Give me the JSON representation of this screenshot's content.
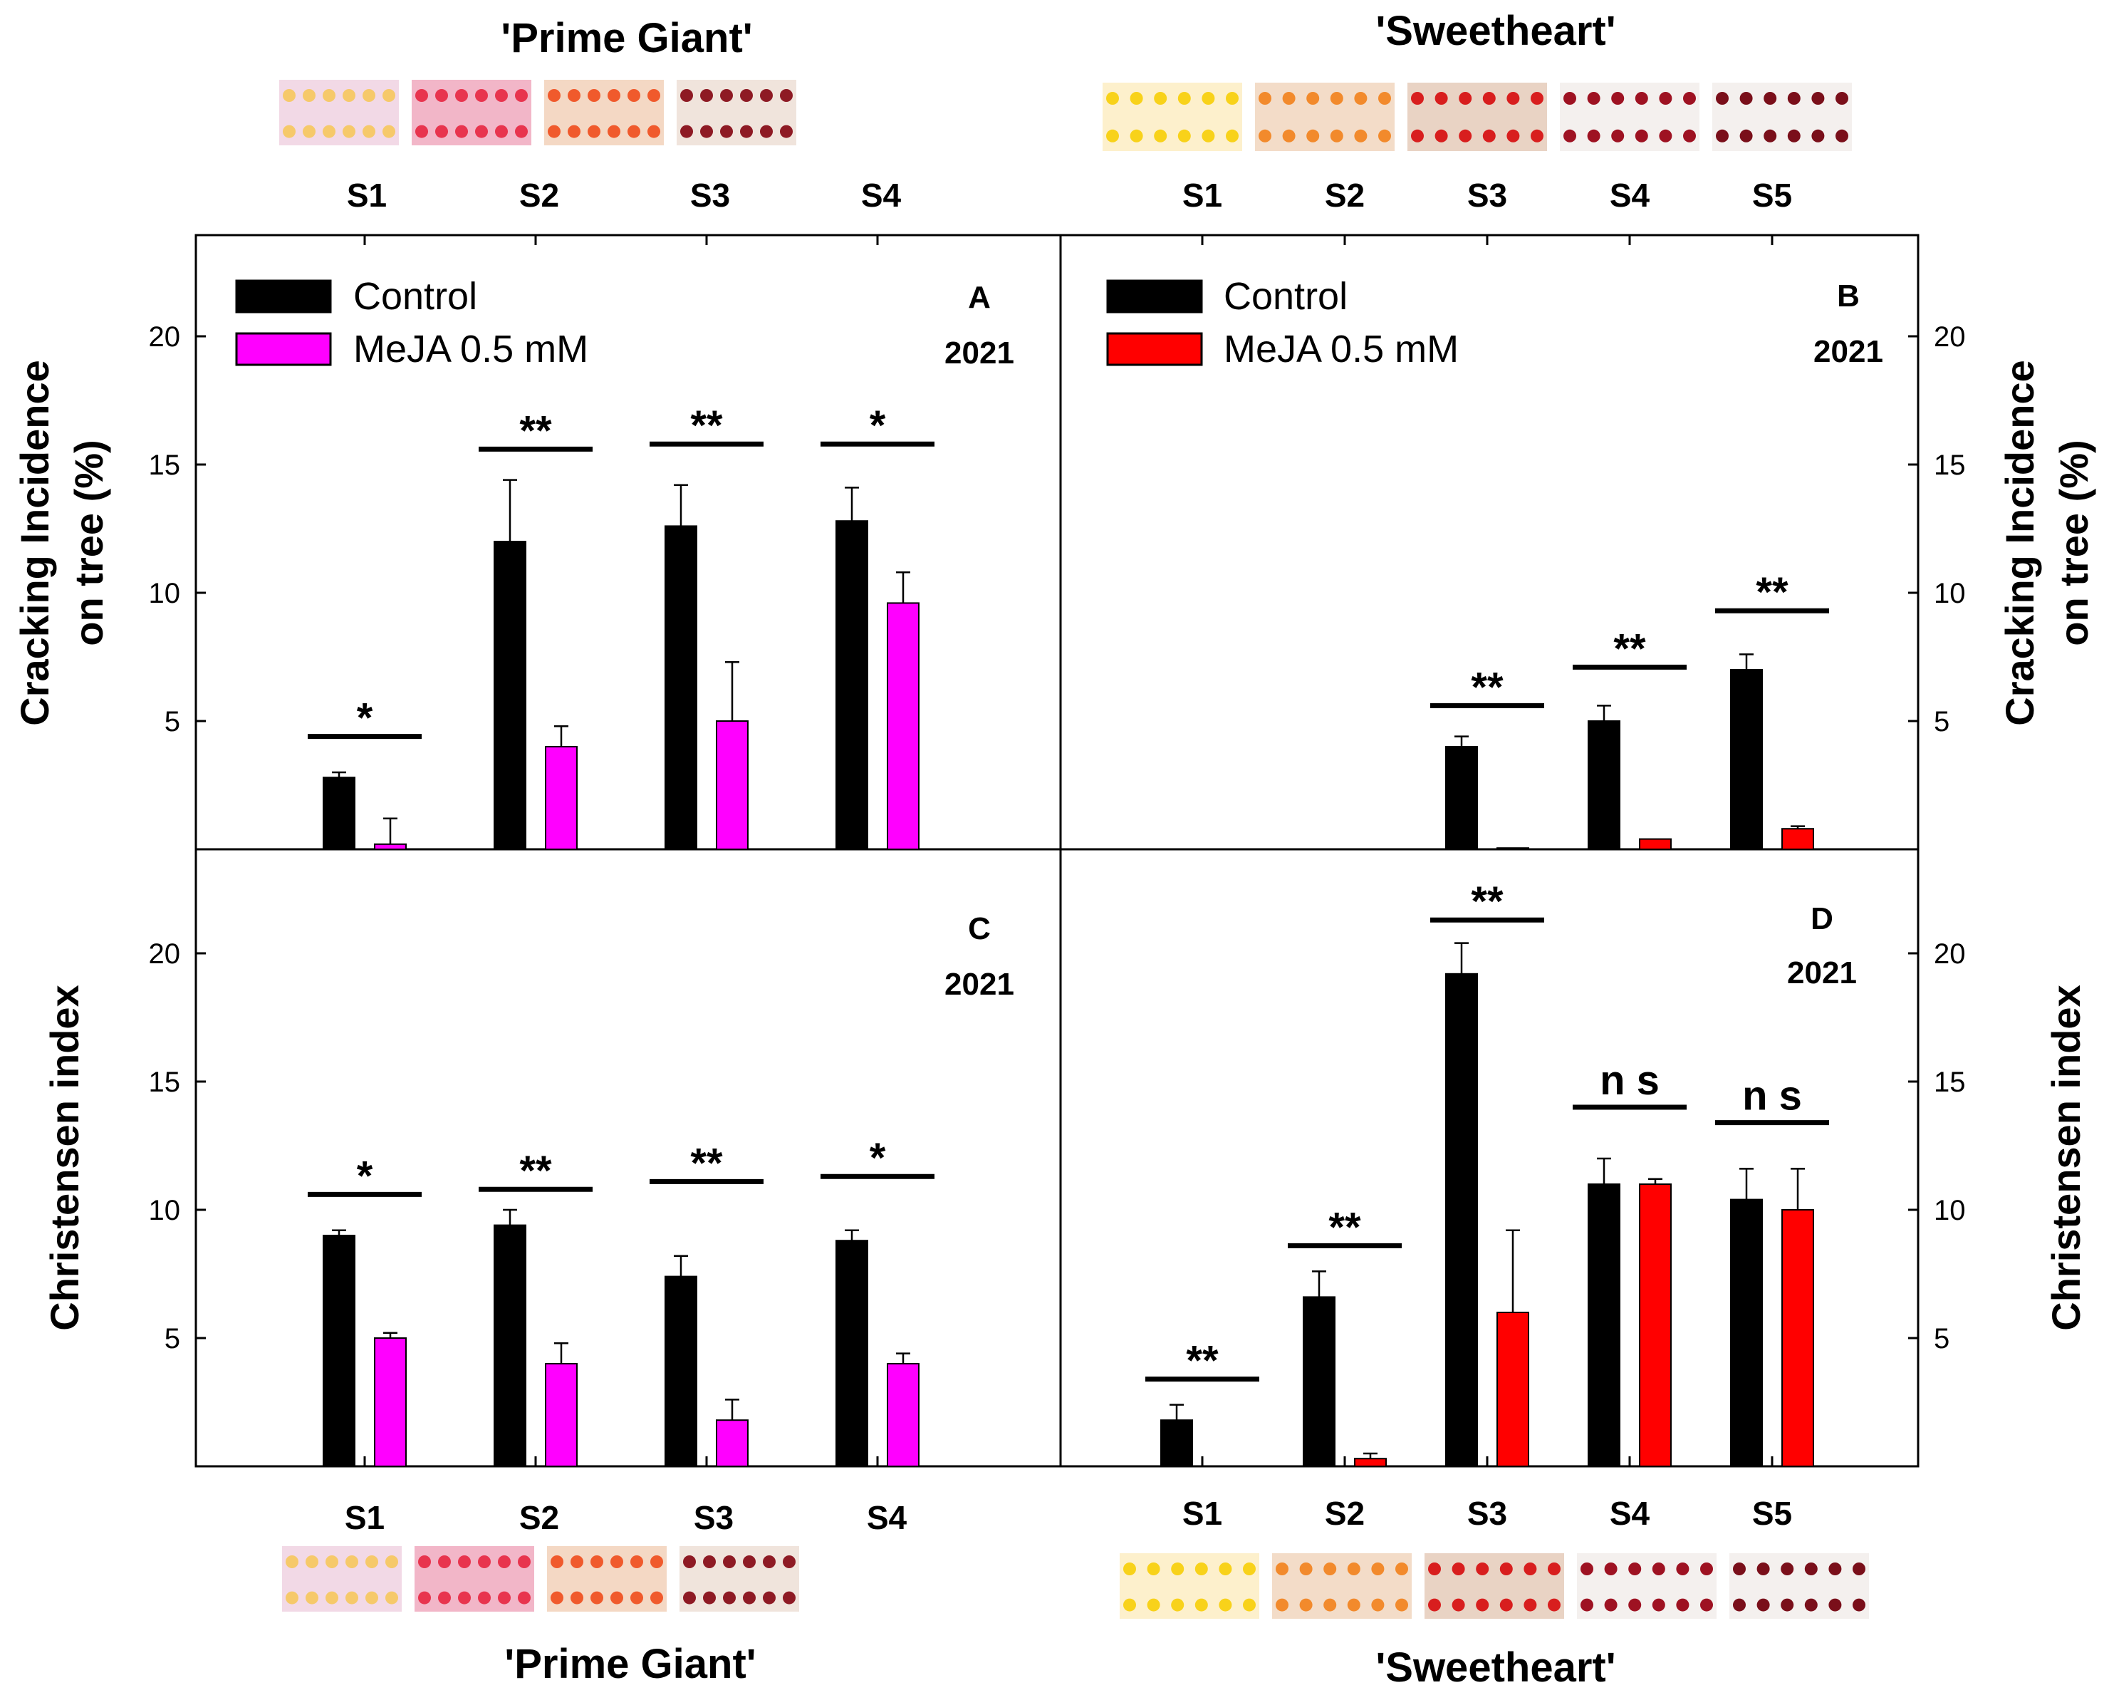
{
  "colors": {
    "control": "#000000",
    "meja_prime_giant": "#ff00ff",
    "meja_sweetheart": "#ff0000"
  },
  "cultivars": {
    "top_left": "'Prime Giant'",
    "top_right": "'Sweetheart'",
    "bottom_left": "'Prime Giant'",
    "bottom_right": "'Sweetheart'"
  },
  "photo_strips": {
    "prime_giant": [
      "#f2d9e6",
      "#f2b6c8",
      "#f4d8c4",
      "#f0e4dc"
    ],
    "sweetheart": [
      "#fdf0cc",
      "#f3dcc8",
      "#e9d3c4",
      "#f4f0ee",
      "#f4f0ee"
    ]
  },
  "chart_data": [
    {
      "panel": "A",
      "type": "bar",
      "year": "2021",
      "cultivar": "'Prime Giant'",
      "ylabel_line1": "Cracking Incidence",
      "ylabel_line2": "on tree (%)",
      "ylim": [
        0,
        24
      ],
      "yticks": [
        "5",
        "10",
        "15",
        "20"
      ],
      "categories": [
        "S1",
        "S2",
        "S3",
        "S4"
      ],
      "series": [
        {
          "name": "Control",
          "values": [
            2.8,
            12.0,
            12.6,
            12.8
          ],
          "errors": [
            0.2,
            2.4,
            1.6,
            1.3
          ]
        },
        {
          "name": "MeJA 0.5 mM",
          "values": [
            0.2,
            4.0,
            5.0,
            9.6
          ],
          "errors": [
            1.0,
            0.8,
            2.3,
            1.2
          ]
        }
      ],
      "significance": [
        "*",
        "**",
        "**",
        "*"
      ],
      "sig_levels": [
        4.4,
        15.6,
        15.8,
        15.8
      ]
    },
    {
      "panel": "B",
      "type": "bar",
      "year": "2021",
      "cultivar": "'Sweetheart'",
      "ylabel_line1": "Cracking Incidence",
      "ylabel_line2": "on tree (%)",
      "ylim": [
        0,
        24
      ],
      "yticks": [
        "5",
        "10",
        "15",
        "20"
      ],
      "categories": [
        "S1",
        "S2",
        "S3",
        "S4",
        "S5"
      ],
      "series": [
        {
          "name": "Control",
          "values": [
            0,
            0,
            4.0,
            5.0,
            7.0
          ],
          "errors": [
            0,
            0,
            0.4,
            0.6,
            0.6
          ]
        },
        {
          "name": "MeJA 0.5 mM",
          "values": [
            0,
            0,
            0.05,
            0.4,
            0.8
          ],
          "errors": [
            0,
            0,
            0,
            0,
            0.1
          ]
        }
      ],
      "significance": [
        "",
        "",
        "**",
        "**",
        "**"
      ],
      "sig_levels": [
        0,
        0,
        5.6,
        7.1,
        9.3
      ]
    },
    {
      "panel": "C",
      "type": "bar",
      "year": "2021",
      "cultivar": "'Prime Giant'",
      "ylabel": "Christensen index",
      "ylim": [
        0,
        24
      ],
      "yticks": [
        "5",
        "10",
        "15",
        "20"
      ],
      "categories": [
        "S1",
        "S2",
        "S3",
        "S4"
      ],
      "series": [
        {
          "name": "Control",
          "values": [
            9.0,
            9.4,
            7.4,
            8.8
          ],
          "errors": [
            0.2,
            0.6,
            0.8,
            0.4
          ]
        },
        {
          "name": "MeJA 0.5 mM",
          "values": [
            5.0,
            4.0,
            1.8,
            4.0
          ],
          "errors": [
            0.2,
            0.8,
            0.8,
            0.4
          ]
        }
      ],
      "significance": [
        "*",
        "**",
        "**",
        "*"
      ],
      "sig_levels": [
        10.6,
        10.8,
        11.1,
        11.3
      ]
    },
    {
      "panel": "D",
      "type": "bar",
      "year": "2021",
      "cultivar": "'Sweetheart'",
      "ylabel": "Christensen index",
      "ylim": [
        0,
        24
      ],
      "yticks": [
        "5",
        "10",
        "15",
        "20"
      ],
      "categories": [
        "S1",
        "S2",
        "S3",
        "S4",
        "S5"
      ],
      "series": [
        {
          "name": "Control",
          "values": [
            1.8,
            6.6,
            19.2,
            11.0,
            10.4
          ],
          "errors": [
            0.6,
            1.0,
            1.2,
            1.0,
            1.2
          ]
        },
        {
          "name": "MeJA 0.5 mM",
          "values": [
            0,
            0.3,
            6.0,
            11.0,
            10.0
          ],
          "errors": [
            0,
            0.2,
            3.2,
            0.2,
            1.6
          ]
        }
      ],
      "significance": [
        "**",
        "**",
        "**",
        "n s",
        "n s"
      ],
      "sig_levels": [
        3.4,
        8.6,
        21.3,
        14.0,
        13.4
      ]
    }
  ]
}
